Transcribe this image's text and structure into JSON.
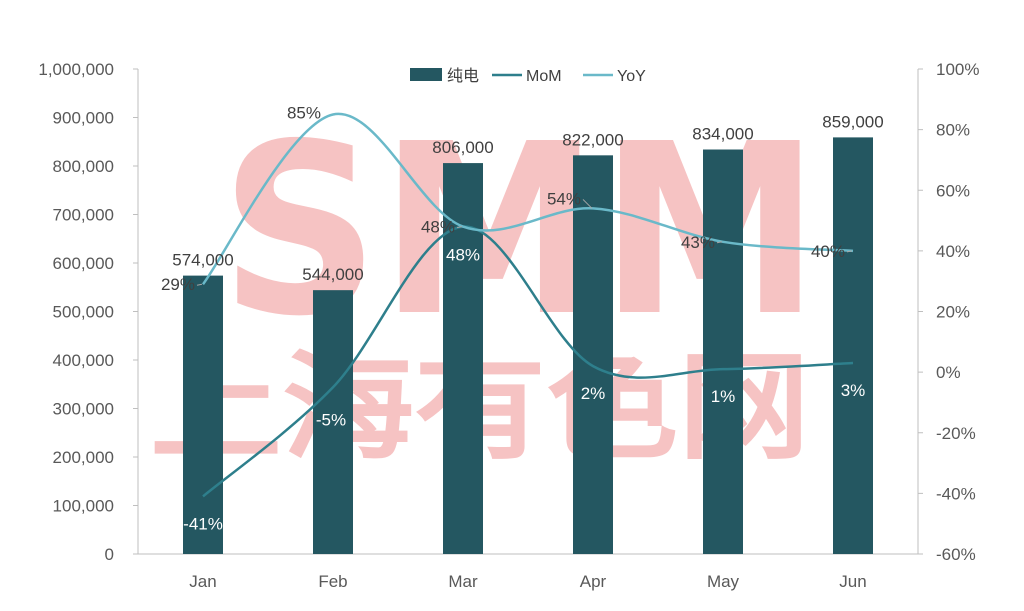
{
  "chart_data": {
    "type": "bar",
    "categories": [
      "Jan",
      "Feb",
      "Mar",
      "Apr",
      "May",
      "Jun"
    ],
    "series": [
      {
        "name": "纯电",
        "type": "bar",
        "axis": "left",
        "values": [
          574000,
          544000,
          806000,
          822000,
          834000,
          859000
        ],
        "labels": [
          "574,000",
          "544,000",
          "806,000",
          "822,000",
          "834,000",
          "859,000"
        ]
      },
      {
        "name": "MoM",
        "type": "line",
        "axis": "right",
        "values": [
          -41,
          -5,
          48,
          2,
          1,
          3
        ],
        "labels": [
          "-41%",
          "-5%",
          "48%",
          "2%",
          "1%",
          "3%"
        ]
      },
      {
        "name": "YoY",
        "type": "line",
        "axis": "right",
        "values": [
          29,
          85,
          48,
          54,
          43,
          40
        ],
        "labels": [
          "29%",
          "85%",
          "48%",
          "54%",
          "43%",
          "40%"
        ]
      }
    ],
    "y_left": {
      "ylim": [
        0,
        1000000
      ],
      "ticks": [
        "0",
        "100,000",
        "200,000",
        "300,000",
        "400,000",
        "500,000",
        "600,000",
        "700,000",
        "800,000",
        "900,000",
        "1,000,000"
      ]
    },
    "y_right": {
      "ylim": [
        -60,
        100
      ],
      "ticks": [
        "-60%",
        "-40%",
        "-20%",
        "0%",
        "20%",
        "40%",
        "60%",
        "80%",
        "100%"
      ]
    },
    "grid": false,
    "legend_position": "top-center",
    "colors": {
      "bar": "#245761",
      "mom": "#2e7f8c",
      "yoy": "#6ab9c9",
      "watermark": "#f4b3b3"
    }
  },
  "watermark": {
    "logo": "SMM",
    "text": "上海有色网"
  }
}
